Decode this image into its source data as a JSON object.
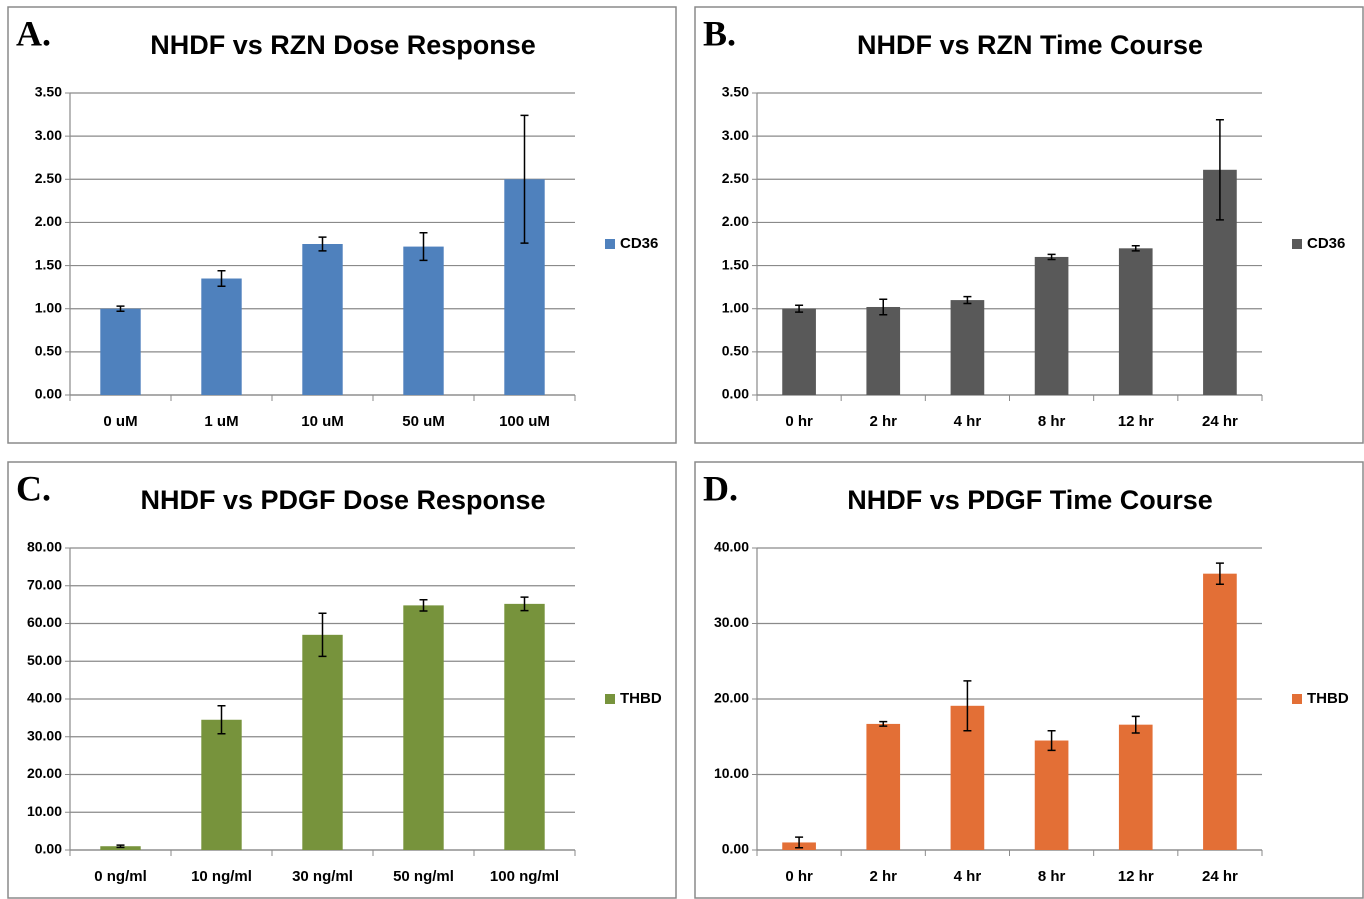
{
  "chart_data": [
    {
      "type": "bar",
      "panel_label": "A.",
      "title": "NHDF vs RZN Dose Response",
      "categories": [
        "0 uM",
        "1 uM",
        "10 uM",
        "50 uM",
        "100 uM"
      ],
      "series": [
        {
          "name": "CD36",
          "color": "#4f81bd",
          "values": [
            1.0,
            1.35,
            1.75,
            1.72,
            2.5
          ],
          "errors": [
            0.03,
            0.09,
            0.08,
            0.16,
            0.74
          ]
        }
      ],
      "ylim": [
        0,
        3.5
      ],
      "yticks": [
        {
          "value": 0,
          "label": "0.00"
        },
        {
          "value": 0.5,
          "label": "0.50"
        },
        {
          "value": 1,
          "label": "1.00"
        },
        {
          "value": 1.5,
          "label": "1.50"
        },
        {
          "value": 2,
          "label": "2.00"
        },
        {
          "value": 2.5,
          "label": "2.50"
        },
        {
          "value": 3,
          "label": "3.00"
        },
        {
          "value": 3.5,
          "label": "3.50"
        }
      ],
      "grid": true,
      "legend": "right"
    },
    {
      "type": "bar",
      "panel_label": "B.",
      "title": "NHDF vs RZN Time Course",
      "categories": [
        "0 hr",
        "2 hr",
        "4 hr",
        "8 hr",
        "12 hr",
        "24 hr"
      ],
      "series": [
        {
          "name": "CD36",
          "color": "#595959",
          "values": [
            1.0,
            1.02,
            1.1,
            1.6,
            1.7,
            2.61
          ],
          "errors": [
            0.04,
            0.09,
            0.04,
            0.03,
            0.03,
            0.58
          ]
        }
      ],
      "ylim": [
        0,
        3.5
      ],
      "yticks": [
        {
          "value": 0,
          "label": "0.00"
        },
        {
          "value": 0.5,
          "label": "0.50"
        },
        {
          "value": 1,
          "label": "1.00"
        },
        {
          "value": 1.5,
          "label": "1.50"
        },
        {
          "value": 2,
          "label": "2.00"
        },
        {
          "value": 2.5,
          "label": "2.50"
        },
        {
          "value": 3,
          "label": "3.00"
        },
        {
          "value": 3.5,
          "label": "3.50"
        }
      ],
      "grid": true,
      "legend": "right"
    },
    {
      "type": "bar",
      "panel_label": "C.",
      "title": "NHDF vs PDGF Dose Response",
      "categories": [
        "0 ng/ml",
        "10 ng/ml",
        "30 ng/ml",
        "50 ng/ml",
        "100 ng/ml"
      ],
      "series": [
        {
          "name": "THBD",
          "color": "#77933c",
          "values": [
            1.0,
            34.5,
            57.0,
            64.8,
            65.2
          ],
          "errors": [
            0.3,
            3.7,
            5.7,
            1.5,
            1.8
          ]
        }
      ],
      "ylim": [
        0,
        80
      ],
      "yticks": [
        {
          "value": 0,
          "label": "0.00"
        },
        {
          "value": 10,
          "label": "10.00"
        },
        {
          "value": 20,
          "label": "20.00"
        },
        {
          "value": 30,
          "label": "30.00"
        },
        {
          "value": 40,
          "label": "40.00"
        },
        {
          "value": 50,
          "label": "50.00"
        },
        {
          "value": 60,
          "label": "60.00"
        },
        {
          "value": 70,
          "label": "70.00"
        },
        {
          "value": 80,
          "label": "80.00"
        }
      ],
      "grid": true,
      "legend": "right"
    },
    {
      "type": "bar",
      "panel_label": "D.",
      "title": "NHDF vs PDGF Time Course",
      "categories": [
        "0 hr",
        "2 hr",
        "4 hr",
        "8 hr",
        "12 hr",
        "24 hr"
      ],
      "series": [
        {
          "name": "THBD",
          "color": "#e36f36",
          "values": [
            1.0,
            16.7,
            19.1,
            14.5,
            16.6,
            36.6
          ],
          "errors": [
            0.7,
            0.3,
            3.3,
            1.3,
            1.1,
            1.4
          ]
        }
      ],
      "ylim": [
        0,
        40
      ],
      "yticks": [
        {
          "value": 0,
          "label": "0.00"
        },
        {
          "value": 10,
          "label": "10.00"
        },
        {
          "value": 20,
          "label": "20.00"
        },
        {
          "value": 30,
          "label": "30.00"
        },
        {
          "value": 40,
          "label": "40.00"
        }
      ],
      "grid": true,
      "legend": "right"
    }
  ]
}
